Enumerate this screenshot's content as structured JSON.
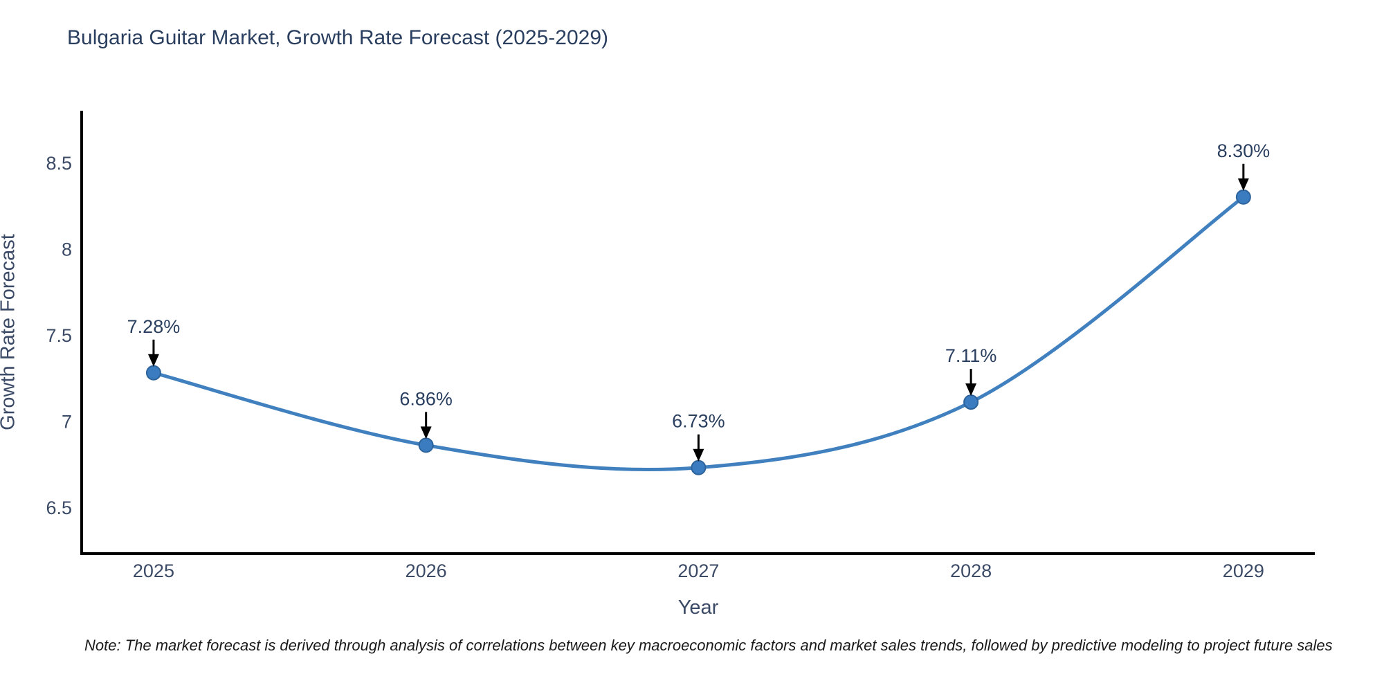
{
  "title": "Bulgaria Guitar Market, Growth Rate Forecast (2025-2029)",
  "note": "Note: The market forecast is derived through analysis of correlations between key macroeconomic factors and market sales trends, followed by predictive modeling to project future sales",
  "chart_data": {
    "type": "line",
    "line_shape": "spline",
    "x": [
      2025,
      2026,
      2027,
      2028,
      2029
    ],
    "values": [
      7.28,
      6.86,
      6.73,
      7.11,
      8.3
    ],
    "point_labels": [
      "7.28%",
      "6.86%",
      "6.73%",
      "7.11%",
      "8.30%"
    ],
    "title": "Bulgaria Guitar Market, Growth Rate Forecast (2025-2029)",
    "xlabel": "Year",
    "ylabel": "Growth Rate Forecast",
    "xticks": [
      2025,
      2026,
      2027,
      2028,
      2029
    ],
    "xtick_labels": [
      "2025",
      "2026",
      "2027",
      "2028",
      "2029"
    ],
    "yticks": [
      6.5,
      7.0,
      7.5,
      8.0,
      8.5
    ],
    "ytick_labels": [
      "6.5",
      "7",
      "7.5",
      "8",
      "8.5"
    ],
    "xlim": [
      2024.736,
      2029.262
    ],
    "ylim": [
      6.231,
      8.801
    ],
    "grid": false,
    "legend_position": "none",
    "annotations_have_arrows": true
  },
  "colors": {
    "background": "#ffffff",
    "line": "#4080bf",
    "marker_fill": "#3a7cbf",
    "marker_stroke": "#2d639c",
    "axis_line": "#000000",
    "tick_label": "#3b4a66",
    "title_text": "#2a3f5f",
    "annotation_text": "#2a3f5f",
    "annotation_arrow": "#000000",
    "note_text": "#1a1a1a"
  }
}
